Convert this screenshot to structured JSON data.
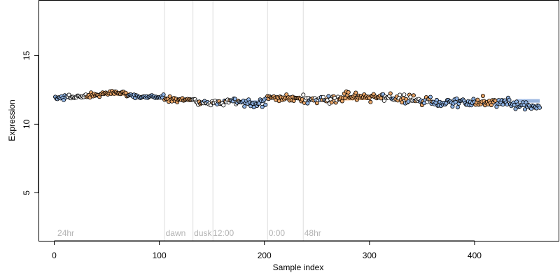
{
  "chart_data": {
    "type": "scatter",
    "title": "",
    "xlabel": "Sample index",
    "ylabel": "Expression",
    "xlim": [
      -15,
      480
    ],
    "ylim": [
      1.5,
      19
    ],
    "x_ticks": [
      0,
      100,
      200,
      300,
      400
    ],
    "y_ticks": [
      5,
      10,
      15
    ],
    "grid": false,
    "legend": "none",
    "colors": {
      "orange": "#e8a467",
      "blue": "#8fb4e6",
      "white": "#ffffff",
      "point_stroke": "#000000",
      "divider": "#dddddd",
      "region_label": "#b3b3b3",
      "fit_orange": "#f2b27a",
      "fit_blue": "#9bb7e0"
    },
    "regions": [
      {
        "label": "24hr",
        "x_label": 3,
        "x_start": 0
      },
      {
        "label": "dawn",
        "x_label": 106,
        "x_start": 105
      },
      {
        "label": "dusk",
        "x_label": 133,
        "x_start": 132
      },
      {
        "label": "12:00",
        "x_label": 151,
        "x_start": 151
      },
      {
        "label": "0:00",
        "x_label": 204,
        "x_start": 203
      },
      {
        "label": "48hr",
        "x_label": 238,
        "x_start": 237
      }
    ],
    "dividers_x": [
      105,
      132,
      151,
      203,
      237
    ],
    "fit_segments": [
      {
        "color": "orange",
        "points": [
          [
            43,
            12.2
          ],
          [
            72,
            12.2
          ]
        ]
      },
      {
        "color": "blue",
        "points": [
          [
            178,
            11.6
          ],
          [
            198,
            11.6
          ]
        ]
      },
      {
        "color": "orange",
        "points": [
          [
            250,
            11.8
          ],
          [
            300,
            11.9
          ]
        ]
      },
      {
        "color": "blue",
        "points": [
          [
            395,
            11.5
          ],
          [
            420,
            11.5
          ]
        ]
      },
      {
        "color": "blue",
        "points": [
          [
            440,
            11.7
          ],
          [
            462,
            11.7
          ]
        ]
      }
    ],
    "segments": [
      {
        "start": 1,
        "end": 80,
        "points": [
          [
            0,
            11.9
          ],
          [
            20,
            12.0
          ],
          [
            40,
            12.1
          ],
          [
            55,
            12.3
          ],
          [
            65,
            12.3
          ],
          [
            80,
            12.0
          ]
        ],
        "noise": 0.12
      },
      {
        "start": 81,
        "end": 104,
        "points": [
          [
            81,
            12.0
          ],
          [
            104,
            12.0
          ]
        ],
        "noise": 0.12
      },
      {
        "start": 105,
        "end": 131,
        "points": [
          [
            105,
            11.8
          ],
          [
            131,
            11.8
          ]
        ],
        "noise": 0.13
      },
      {
        "start": 132,
        "end": 150,
        "points": [
          [
            132,
            11.7
          ],
          [
            150,
            11.5
          ]
        ],
        "noise": 0.2
      },
      {
        "start": 151,
        "end": 176,
        "points": [
          [
            151,
            11.6
          ],
          [
            176,
            11.7
          ]
        ],
        "noise": 0.15
      },
      {
        "start": 177,
        "end": 202,
        "points": [
          [
            177,
            11.5
          ],
          [
            190,
            11.4
          ],
          [
            202,
            11.7
          ]
        ],
        "noise": 0.25
      },
      {
        "start": 203,
        "end": 236,
        "points": [
          [
            203,
            12.0
          ],
          [
            236,
            11.8
          ]
        ],
        "noise": 0.15
      },
      {
        "start": 237,
        "end": 462,
        "points": [
          [
            237,
            11.8
          ],
          [
            260,
            11.8
          ],
          [
            285,
            12.0
          ],
          [
            300,
            11.9
          ],
          [
            330,
            11.9
          ],
          [
            350,
            11.8
          ],
          [
            370,
            11.5
          ],
          [
            400,
            11.6
          ],
          [
            430,
            11.6
          ],
          [
            450,
            11.3
          ],
          [
            462,
            11.5
          ]
        ],
        "noise": 0.25
      }
    ],
    "color_runs": [
      {
        "start": 1,
        "end": 12,
        "color": "blue"
      },
      {
        "start": 13,
        "end": 30,
        "color": "white"
      },
      {
        "start": 31,
        "end": 70,
        "color": "orange"
      },
      {
        "start": 71,
        "end": 104,
        "color": "blue"
      },
      {
        "start": 105,
        "end": 131,
        "color": "orange"
      },
      {
        "start": 132,
        "end": 176,
        "color": "mixed"
      },
      {
        "start": 177,
        "end": 202,
        "color": "blue"
      },
      {
        "start": 203,
        "end": 236,
        "color": "orange"
      },
      {
        "start": 237,
        "end": 270,
        "color": "mixed"
      },
      {
        "start": 271,
        "end": 310,
        "color": "orange"
      },
      {
        "start": 311,
        "end": 360,
        "color": "mixed"
      },
      {
        "start": 361,
        "end": 400,
        "color": "blue"
      },
      {
        "start": 401,
        "end": 420,
        "color": "orange"
      },
      {
        "start": 421,
        "end": 462,
        "color": "blue"
      }
    ]
  }
}
